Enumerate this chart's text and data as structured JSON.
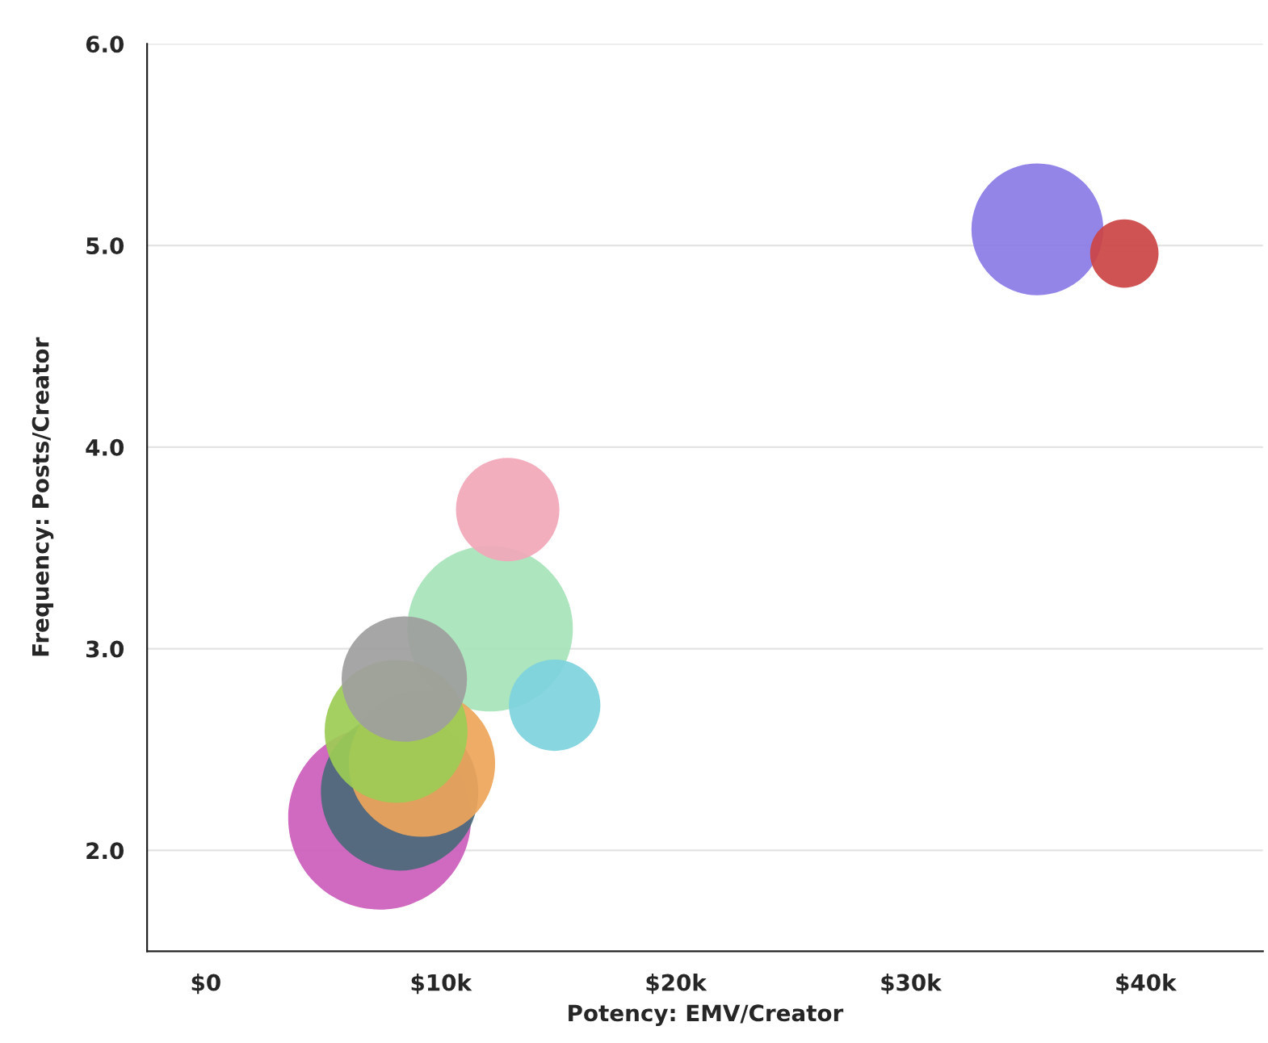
{
  "chart_data": {
    "type": "bubble",
    "xlabel": "Potency: EMV/Creator",
    "ylabel": "Frequency: Posts/Creator",
    "x": [
      12100,
      7400,
      8250,
      9200,
      8100,
      8450,
      12850,
      14850,
      35400,
      39100
    ],
    "values": [
      3.1,
      2.16,
      2.29,
      2.43,
      2.59,
      2.85,
      3.69,
      2.72,
      5.08,
      4.96
    ],
    "sizes": [
      0.82,
      1,
      0.74,
      0.64,
      0.61,
      0.47,
      0.32,
      0.25,
      0.52,
      0.14
    ],
    "colors": [
      "#a6e3b8",
      "#cc5cbb",
      "#4a6a78",
      "#eea55a",
      "#9ccc55",
      "#9e9e9e",
      "#f2a7b8",
      "#7dd3dd",
      "#8a7be6",
      "#cc4444"
    ],
    "xlim": [
      -2500,
      45000
    ],
    "xticks": [
      {
        "value": 0,
        "label": "$0"
      },
      {
        "value": 10000,
        "label": "$10k"
      },
      {
        "value": 20000,
        "label": "$20k"
      },
      {
        "value": 30000,
        "label": "$30k"
      },
      {
        "value": 40000,
        "label": "$40k"
      }
    ],
    "ylim": [
      1.5,
      6.0
    ],
    "yticks": [
      {
        "value": 2,
        "label": "2.0"
      },
      {
        "value": 3,
        "label": "3.0"
      },
      {
        "value": 4,
        "label": "4.0"
      },
      {
        "value": 5,
        "label": "5.0"
      },
      {
        "value": 6,
        "label": "6.0"
      }
    ],
    "grid": "y"
  }
}
